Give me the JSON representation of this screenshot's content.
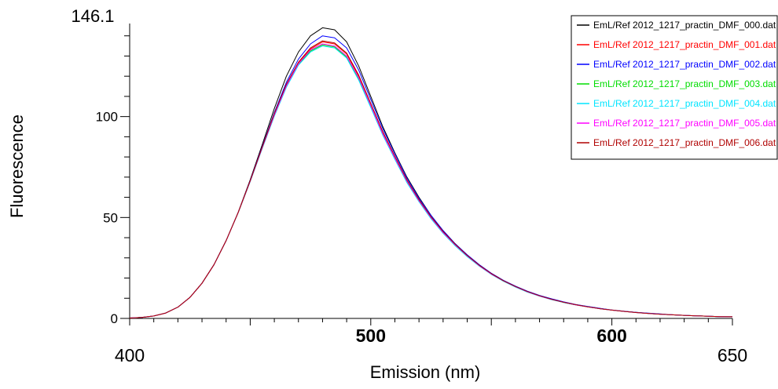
{
  "chart_data": {
    "type": "line",
    "title": "",
    "xlabel": "Emission (nm)",
    "ylabel": "Fluorescence",
    "xlim": [
      400,
      650
    ],
    "ylim": [
      0,
      146.1
    ],
    "xtick_labels": [
      {
        "value": 400,
        "label": "400"
      },
      {
        "value": 500,
        "label": "500"
      },
      {
        "value": 600,
        "label": "600"
      },
      {
        "value": 650,
        "label": "650"
      }
    ],
    "ytick_labels": [
      {
        "value": 0,
        "label": "0"
      },
      {
        "value": 50,
        "label": "50"
      },
      {
        "value": 100,
        "label": "100"
      },
      {
        "value": 146.1,
        "label": "146.1"
      }
    ],
    "grid": false,
    "legend": "top-right",
    "x": [
      400,
      405,
      410,
      415,
      420,
      425,
      430,
      435,
      440,
      445,
      450,
      455,
      460,
      465,
      470,
      475,
      480,
      485,
      490,
      495,
      500,
      505,
      510,
      515,
      520,
      525,
      530,
      535,
      540,
      545,
      550,
      555,
      560,
      565,
      570,
      575,
      580,
      585,
      590,
      595,
      600,
      605,
      610,
      615,
      620,
      625,
      630,
      635,
      640,
      645,
      650
    ],
    "series": [
      {
        "name": "EmL/Ref 2012_1217_practin_DMF_000.dat",
        "color": "#000000",
        "values": [
          0.2,
          0.5,
          1.2,
          2.7,
          5.6,
          10.4,
          17.4,
          26.7,
          38.5,
          52.6,
          68.7,
          86.1,
          104,
          120,
          132,
          140,
          144,
          143,
          137,
          125,
          110,
          95,
          82,
          70,
          60,
          51,
          43.5,
          37,
          31.4,
          26.5,
          22.3,
          18.8,
          15.9,
          13.4,
          11.3,
          9.6,
          8.1,
          6.8,
          5.8,
          4.9,
          4.1,
          3.5,
          3,
          2.5,
          2.1,
          1.8,
          1.5,
          1.3,
          1.1,
          0.9,
          0.8
        ]
      },
      {
        "name": "EmL/Ref 2012_1217_practin_DMF_001.dat",
        "color": "#ff0000",
        "values": [
          0.2,
          0.5,
          1.2,
          2.7,
          5.6,
          10.4,
          17.4,
          26.7,
          38.5,
          52.5,
          68.1,
          84.7,
          101,
          115.5,
          126.5,
          133.5,
          137,
          136,
          131,
          120,
          106,
          92,
          80,
          68,
          58.5,
          50,
          42.7,
          36.5,
          31,
          26.2,
          22.1,
          18.6,
          15.7,
          13.2,
          11.2,
          9.5,
          8,
          6.7,
          5.7,
          4.8,
          4.1,
          3.5,
          2.9,
          2.5,
          2.1,
          1.8,
          1.5,
          1.3,
          1.1,
          0.9,
          0.8
        ]
      },
      {
        "name": "EmL/Ref 2012_1217_practin_DMF_002.dat",
        "color": "#0000ff",
        "values": [
          0.2,
          0.5,
          1.2,
          2.7,
          5.6,
          10.4,
          17.4,
          26.7,
          38.5,
          52.5,
          68.3,
          85.2,
          102,
          117,
          128.5,
          136,
          140,
          139,
          134,
          123,
          108.5,
          94,
          81.5,
          69.5,
          59.5,
          51,
          43.5,
          37,
          31.5,
          26.6,
          22.4,
          18.9,
          16,
          13.5,
          11.4,
          9.7,
          8.2,
          6.9,
          5.9,
          5,
          4.2,
          3.6,
          3,
          2.6,
          2.2,
          1.8,
          1.5,
          1.3,
          1.1,
          0.9,
          0.8
        ]
      },
      {
        "name": "EmL/Ref 2012_1217_practin_DMF_003.dat",
        "color": "#00dd00",
        "values": [
          0.2,
          0.5,
          1.2,
          2.7,
          5.6,
          10.4,
          17.4,
          26.7,
          38.5,
          52.4,
          67.9,
          84.4,
          100.5,
          114.8,
          125.8,
          132.5,
          135.5,
          134.5,
          129.5,
          118.5,
          104.8,
          91,
          79,
          67.5,
          58,
          49.6,
          42.4,
          36.2,
          30.8,
          26,
          21.9,
          18.5,
          15.6,
          13.1,
          11.1,
          9.4,
          7.9,
          6.7,
          5.7,
          4.8,
          4.1,
          3.5,
          2.9,
          2.5,
          2.1,
          1.8,
          1.5,
          1.3,
          1.1,
          0.9,
          0.8
        ]
      },
      {
        "name": "EmL/Ref 2012_1217_practin_DMF_004.dat",
        "color": "#00e5ff",
        "values": [
          0.2,
          0.5,
          1.2,
          2.7,
          5.6,
          10.4,
          17.4,
          26.7,
          38.5,
          52.4,
          67.8,
          84.2,
          100.2,
          114.5,
          125.5,
          132,
          135,
          134,
          129,
          118,
          104.5,
          90.8,
          78.8,
          67.3,
          57.8,
          49.4,
          42.2,
          36,
          30.6,
          25.9,
          21.8,
          18.4,
          15.5,
          13,
          11,
          9.3,
          7.9,
          6.7,
          5.7,
          4.8,
          4.1,
          3.5,
          2.9,
          2.5,
          2.1,
          1.8,
          1.5,
          1.3,
          1.1,
          0.9,
          0.8
        ]
      },
      {
        "name": "EmL/Ref 2012_1217_practin_DMF_005.dat",
        "color": "#ff00ff",
        "values": [
          0.2,
          0.5,
          1.2,
          2.7,
          5.6,
          10.4,
          17.4,
          26.7,
          38.5,
          52.5,
          68,
          84.6,
          100.8,
          115.2,
          126.2,
          133,
          136,
          135,
          130,
          119.2,
          105.5,
          91.5,
          79.5,
          68,
          58.3,
          49.9,
          42.6,
          36.4,
          31,
          26.1,
          22,
          18.6,
          15.7,
          13.2,
          11.1,
          9.4,
          8,
          6.7,
          5.7,
          4.8,
          4.1,
          3.5,
          2.9,
          2.5,
          2.1,
          1.8,
          1.5,
          1.3,
          1.1,
          0.9,
          0.8
        ]
      },
      {
        "name": "EmL/Ref 2012_1217_practin_DMF_006.dat",
        "color": "#b00000",
        "values": [
          0.2,
          0.5,
          1.2,
          2.7,
          5.6,
          10.4,
          17.4,
          26.7,
          38.5,
          52.5,
          68.2,
          84.9,
          101.5,
          116,
          127,
          134,
          137.5,
          136.5,
          131.5,
          120.5,
          106.5,
          92.5,
          80.3,
          68.6,
          58.8,
          50.3,
          43,
          36.7,
          31.2,
          26.3,
          22.2,
          18.7,
          15.8,
          13.3,
          11.2,
          9.5,
          8,
          6.8,
          5.7,
          4.8,
          4.1,
          3.5,
          2.9,
          2.5,
          2.1,
          1.8,
          1.5,
          1.3,
          1.1,
          0.9,
          0.8
        ]
      }
    ]
  }
}
